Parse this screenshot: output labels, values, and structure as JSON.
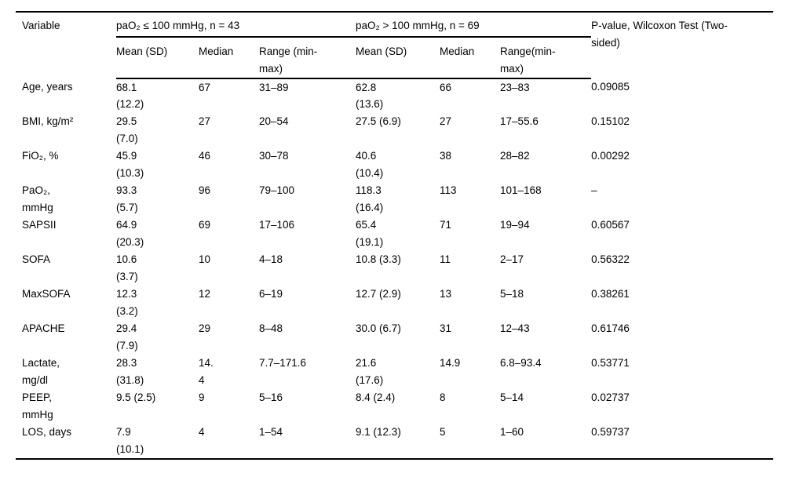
{
  "page": {
    "background": "#ffffff",
    "text_color": "#000000",
    "rule_color": "#000000"
  },
  "table": {
    "variable_header": "Variable",
    "group1_header": "paO₂ ≤ 100 mmHg, n = 43",
    "group2_header": "paO₂ > 100 mmHg, n = 69",
    "pvalue_header": "P-value, Wilcoxon Test (Two-\nsided)",
    "subheaders": [
      "Mean (SD)",
      "Median",
      "Range (min-\nmax)",
      "Mean (SD)",
      "Median",
      "Range(min-\nmax)"
    ],
    "rows": [
      {
        "variable": "Age, years",
        "cells": [
          "68.1\n(12.2)",
          "67",
          "31–89",
          "62.8\n(13.6)",
          "66",
          "23–83",
          "0.09085"
        ]
      },
      {
        "variable": "BMI, kg/m²",
        "cells": [
          "29.5\n(7.0)",
          "27",
          "20–54",
          "27.5 (6.9)",
          "27",
          "17–55.6",
          "0.15102"
        ]
      },
      {
        "variable": "FiO₂, %",
        "cells": [
          "45.9\n(10.3)",
          "46",
          "30–78",
          "40.6\n(10.4)",
          "38",
          "28–82",
          "0.00292"
        ]
      },
      {
        "variable": "PaO₂,\nmmHg",
        "cells": [
          "93.3\n(5.7)",
          "96",
          "79–100",
          "118.3\n(16.4)",
          "113",
          "101–168",
          "–"
        ]
      },
      {
        "variable": "SAPSII",
        "cells": [
          "64.9\n(20.3)",
          "69",
          "17–106",
          "65.4\n(19.1)",
          "71",
          "19–94",
          "0.60567"
        ]
      },
      {
        "variable": "SOFA",
        "cells": [
          "10.6\n(3.7)",
          "10",
          "4–18",
          "10.8 (3.3)",
          "11",
          "2–17",
          "0.56322"
        ]
      },
      {
        "variable": "MaxSOFA",
        "cells": [
          "12.3\n(3.2)",
          "12",
          "6–19",
          "12.7 (2.9)",
          "13",
          "5–18",
          "0.38261"
        ]
      },
      {
        "variable": "APACHE",
        "cells": [
          "29.4\n(7.9)",
          "29",
          "8–48",
          "30.0 (6.7)",
          "31",
          "12–43",
          "0.61746"
        ]
      },
      {
        "variable": "Lactate,\nmg/dl",
        "cells": [
          "28.3\n(31.8)",
          "14.\n4",
          "7.7–171.6",
          "21.6\n(17.6)",
          "14.9",
          "6.8–93.4",
          "0.53771"
        ]
      },
      {
        "variable": "PEEP,\nmmHg",
        "cells": [
          "9.5 (2.5)",
          "9",
          "5–16",
          "8.4 (2.4)",
          "8",
          "5–14",
          "0.02737"
        ]
      },
      {
        "variable": "LOS, days",
        "cells": [
          "7.9\n(10.1)",
          "4",
          "1–54",
          "9.1 (12.3)",
          "5",
          "1–60",
          "0.59737"
        ]
      }
    ]
  }
}
